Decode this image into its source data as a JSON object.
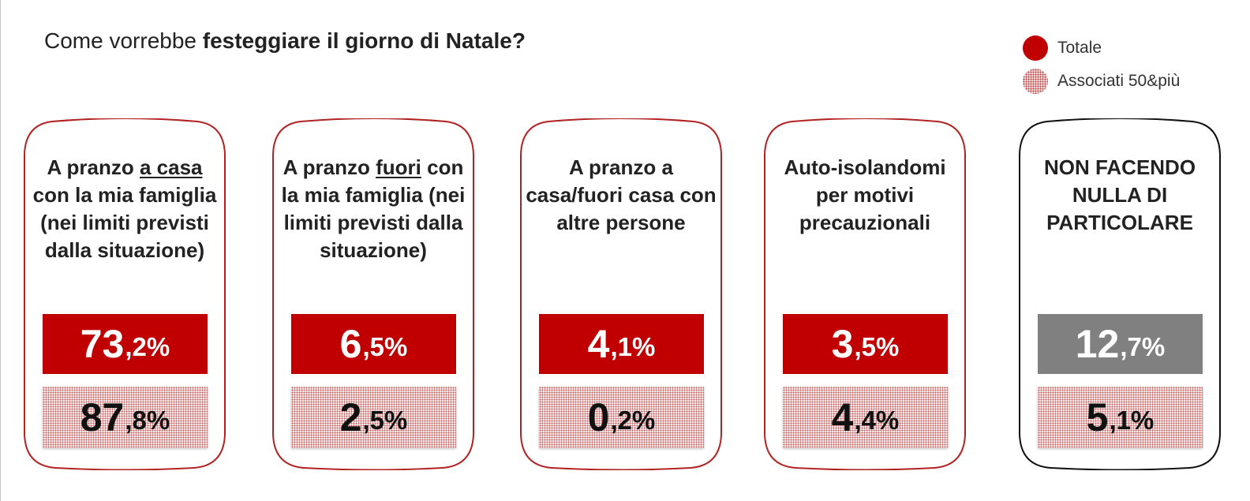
{
  "title": {
    "prefix": "Come vorrebbe ",
    "bold": "festeggiare il giorno di Natale?"
  },
  "legend": {
    "total_label": "Totale",
    "assoc_label": "Associati 50&più"
  },
  "colors": {
    "total": "#c00000",
    "total_grey": "#808080",
    "card_border_red": "#b22222",
    "card_border_black": "#111111"
  },
  "cards": [
    {
      "label_before": "A pranzo ",
      "label_underline": "a casa",
      "label_after": " con la mia famiglia (nei limiti previsti dalla situazione)",
      "total_int": "73",
      "total_dec": ",2%",
      "assoc_int": "87",
      "assoc_dec": ",8%"
    },
    {
      "label_before": "A pranzo ",
      "label_underline": "fuori",
      "label_after": " con la mia famiglia (nei limiti previsti dalla situazione)",
      "total_int": "6",
      "total_dec": ",5%",
      "assoc_int": "2",
      "assoc_dec": ",5%"
    },
    {
      "label_before": "A pranzo a casa/fuori casa con altre persone",
      "label_underline": "",
      "label_after": "",
      "total_int": "4",
      "total_dec": ",1%",
      "assoc_int": "0",
      "assoc_dec": ",2%"
    },
    {
      "label_before": "Auto-isolandomi per motivi precauzionali",
      "label_underline": "",
      "label_after": "",
      "total_int": "3",
      "total_dec": ",5%",
      "assoc_int": "4",
      "assoc_dec": ",4%"
    },
    {
      "label_before": "NON FACENDO NULLA DI PARTICOLARE",
      "label_underline": "",
      "label_after": "",
      "total_int": "12",
      "total_dec": ",7%",
      "assoc_int": "5",
      "assoc_dec": ",1%"
    }
  ],
  "chart_data": {
    "type": "bar",
    "title": "Come vorrebbe festeggiare il giorno di Natale?",
    "categories": [
      "A pranzo a casa con la mia famiglia (nei limiti previsti dalla situazione)",
      "A pranzo fuori con la mia famiglia (nei limiti previsti dalla situazione)",
      "A pranzo a casa/fuori casa con altre persone",
      "Auto-isolandomi per motivi precauzionali",
      "NON FACENDO NULLA DI PARTICOLARE"
    ],
    "series": [
      {
        "name": "Totale",
        "values": [
          73.2,
          6.5,
          4.1,
          3.5,
          12.7
        ]
      },
      {
        "name": "Associati 50&più",
        "values": [
          87.8,
          2.5,
          0.2,
          4.4,
          5.1
        ]
      }
    ],
    "unit": "%",
    "legend_position": "top-right"
  }
}
